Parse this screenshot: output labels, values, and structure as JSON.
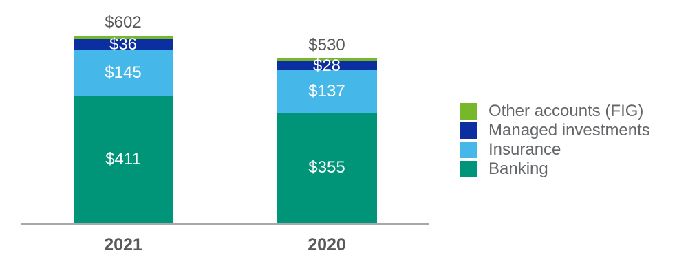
{
  "chart_data": {
    "type": "bar",
    "subtype": "stacked",
    "categories": [
      "2021",
      "2020"
    ],
    "series": [
      {
        "name": "Other accounts (FIG)",
        "color": "#76B82A",
        "values": [
          10,
          10
        ],
        "labels": [
          "",
          ""
        ]
      },
      {
        "name": "Managed investments",
        "color": "#0B2FA0",
        "values": [
          36,
          28
        ],
        "labels": [
          "$36",
          "$28"
        ]
      },
      {
        "name": "Insurance",
        "color": "#45B7E8",
        "values": [
          145,
          137
        ],
        "labels": [
          "$145",
          "$137"
        ]
      },
      {
        "name": "Banking",
        "color": "#009578",
        "values": [
          411,
          355
        ],
        "labels": [
          "$411",
          "$355"
        ]
      }
    ],
    "totals": [
      602,
      530
    ],
    "total_labels": [
      "$602",
      "$530"
    ],
    "stack_order_top_to_bottom": [
      "Other accounts (FIG)",
      "Managed investments",
      "Insurance",
      "Banking"
    ],
    "legend_position": "right",
    "legend_entries": [
      "Other accounts (FIG)",
      "Managed investments",
      "Insurance",
      "Banking"
    ],
    "grid": "off",
    "colors": {
      "background": "#FFFFFF",
      "axis_line": "#A6A8AB",
      "segment_value_text": "#FFFFFF",
      "total_label_text": "#58595B",
      "category_label_text": "#58595B",
      "legend_text": "#63666A"
    }
  }
}
